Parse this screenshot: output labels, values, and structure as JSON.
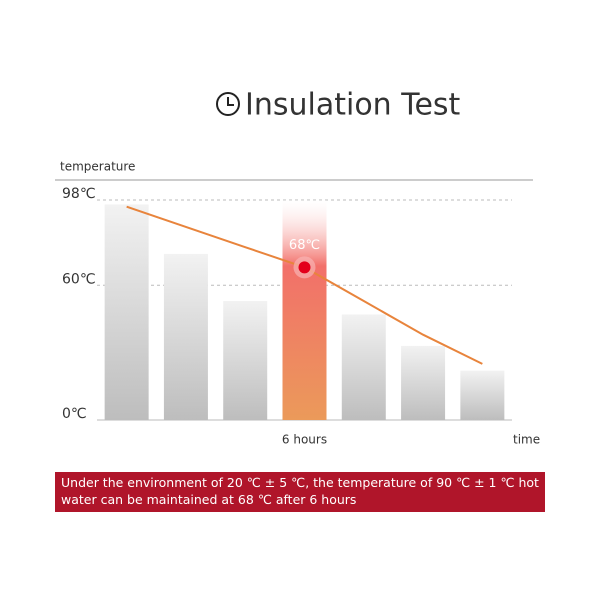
{
  "chart_data": {
    "type": "bar-line",
    "title": "Insulation Test",
    "y_label": "temperature",
    "x_label": "time",
    "categories": [
      null,
      null,
      null,
      "6 hours",
      null,
      null,
      null
    ],
    "bars": {
      "values": [
        96,
        74,
        53,
        98,
        47,
        33,
        22
      ],
      "color": "#c9c9c9",
      "highlight_color": "#e8533b",
      "highlight_index": 3
    },
    "line": {
      "values": [
        95,
        86,
        77,
        68,
        53,
        38,
        25
      ],
      "color": "#e8843c",
      "value_labels": [
        null,
        null,
        null,
        "68℃",
        null,
        null,
        null
      ]
    },
    "ylim": [
      0,
      98
    ],
    "yticks": [
      {
        "value": 0,
        "label": "0℃"
      },
      {
        "value": 60,
        "label": "60℃"
      },
      {
        "value": 98,
        "label": "98℃"
      }
    ],
    "grid": true,
    "footer": "Under the environment of 20 ℃ ± 5 ℃, the temperature of 90 ℃ ± 1 ℃ hot water can be maintained at 68 ℃ after 6 hours"
  }
}
